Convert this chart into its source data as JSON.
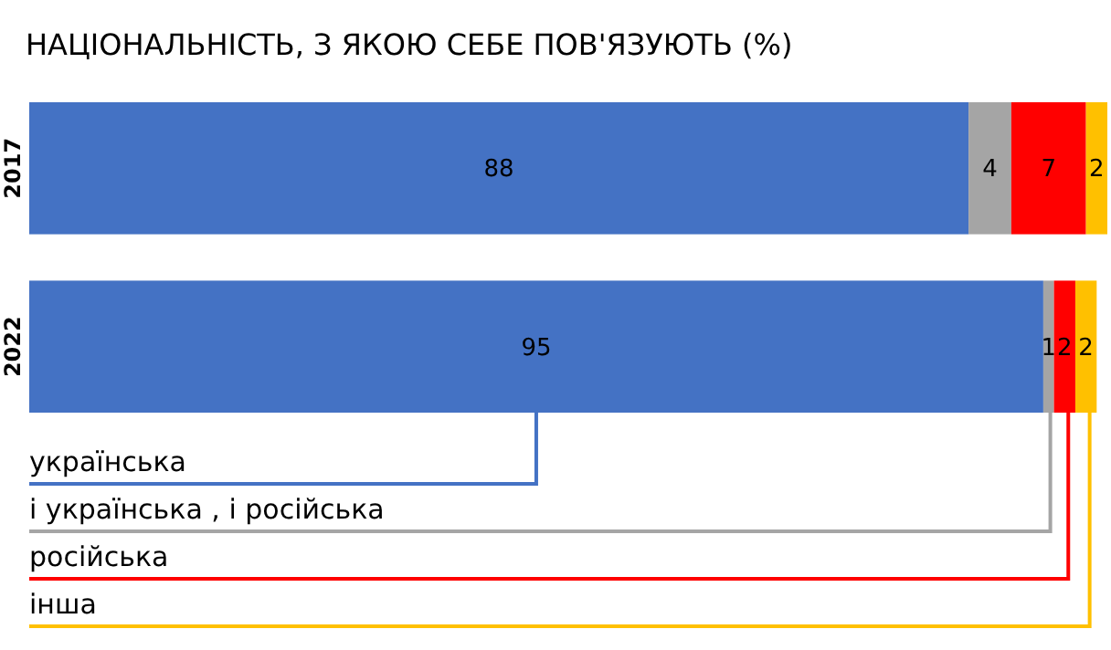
{
  "chart_data": {
    "type": "bar",
    "title": "НАЦІОНАЛЬНІСТЬ, З ЯКОЮ СЕБЕ ПОВ'ЯЗУЮТЬ (%)",
    "orientation": "horizontal",
    "stacked": true,
    "categories": [
      "2017",
      "2022"
    ],
    "series": [
      {
        "name": "українська",
        "color": "#4472c4",
        "values": [
          88,
          95
        ]
      },
      {
        "name": "і українська , і російська",
        "color": "#a5a5a5",
        "values": [
          4,
          1
        ]
      },
      {
        "name": "російська",
        "color": "#ff0000",
        "values": [
          7,
          2
        ]
      },
      {
        "name": "інша",
        "color": "#ffc000",
        "values": [
          2,
          2
        ]
      }
    ],
    "data_labels": true,
    "legend": "bottom"
  }
}
